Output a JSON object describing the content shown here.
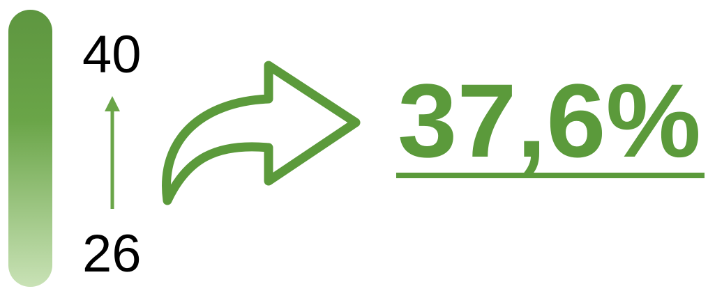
{
  "scale": {
    "top": "40",
    "bottom": "26"
  },
  "result": "37,6%"
}
